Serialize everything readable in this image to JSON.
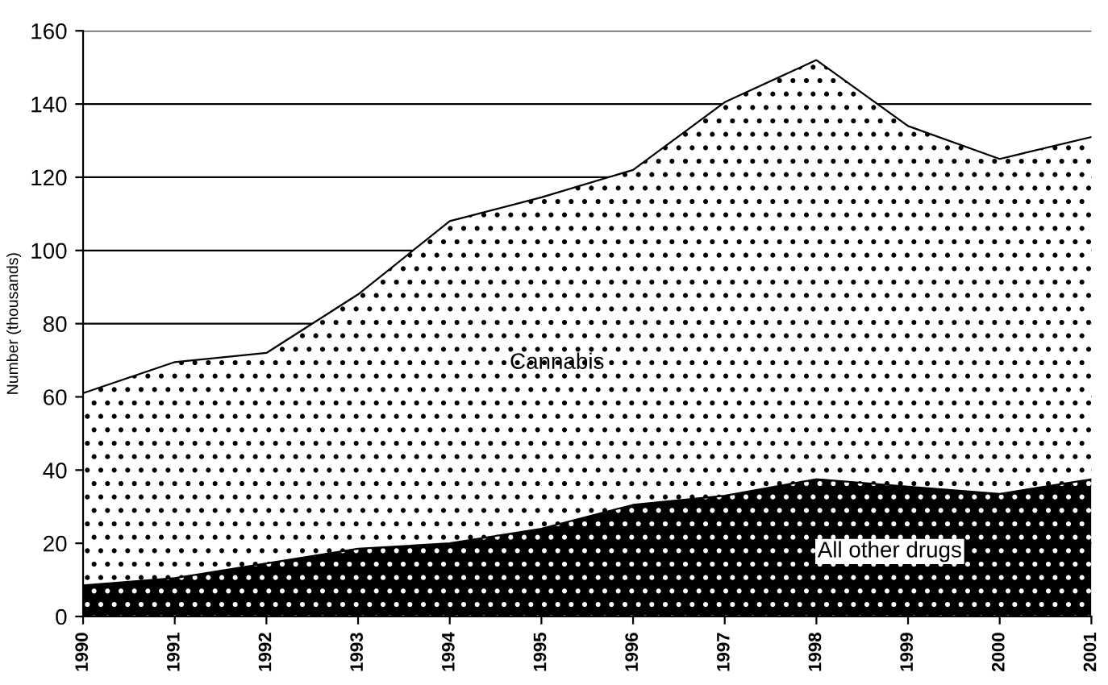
{
  "chart_data": {
    "type": "area",
    "stacked": true,
    "ylabel": "Number (thousands)",
    "categories": [
      "1990",
      "1991",
      "1992",
      "1993",
      "1994",
      "1995",
      "1996",
      "1997",
      "1998",
      "1999",
      "2000",
      "2001"
    ],
    "series": [
      {
        "name": "All other drugs",
        "color": "#000000",
        "values": [
          8.5,
          10.5,
          14.5,
          18.5,
          20,
          24,
          30.5,
          33,
          37.5,
          35.5,
          33.5,
          37.5
        ]
      },
      {
        "name": "Cannabis",
        "color": "#ffffff",
        "values": [
          52.5,
          59,
          57.5,
          69.5,
          88,
          90.5,
          91.5,
          107.5,
          114.5,
          98.5,
          91.5,
          93.5
        ]
      }
    ],
    "ylim": [
      0,
      160
    ],
    "yticks": [
      0,
      20,
      40,
      60,
      80,
      100,
      120,
      140,
      160
    ],
    "grid": "y",
    "legend": false
  }
}
